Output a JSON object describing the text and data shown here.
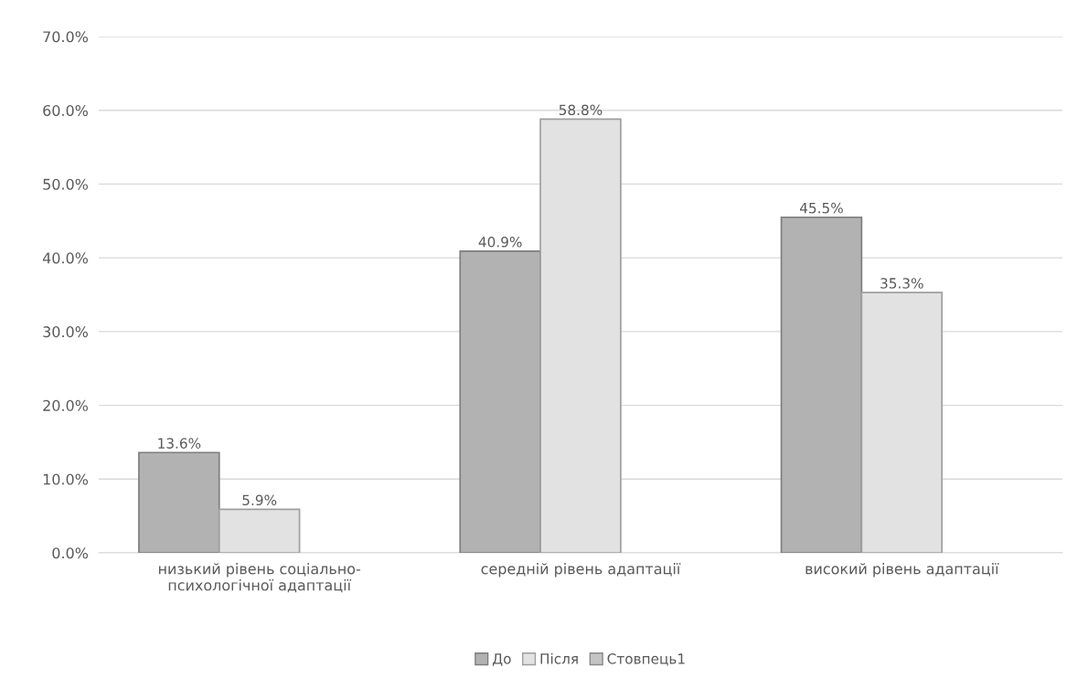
{
  "chart_data": {
    "type": "bar",
    "categories": [
      "низький рівень соціально-\nпсихологічної адаптації",
      "середній рівень адаптації",
      "високий рівень адаптації"
    ],
    "series": [
      {
        "name": "До",
        "color": "#b2b2b2",
        "values": [
          13.6,
          40.9,
          45.5
        ],
        "value_labels": [
          "13.6%",
          "40.9%",
          "45.5%"
        ]
      },
      {
        "name": "Після",
        "color": "#e2e2e2",
        "values": [
          5.9,
          58.8,
          35.3
        ],
        "value_labels": [
          "5.9%",
          "58.8%",
          "35.3%"
        ]
      },
      {
        "name": "Стовпець1",
        "color": "#c4c4c4",
        "values": [
          null,
          null,
          null
        ]
      }
    ],
    "ylim": [
      0,
      70
    ],
    "yticks": [
      {
        "value": 0,
        "label": "0.0%"
      },
      {
        "value": 10,
        "label": "10.0%"
      },
      {
        "value": 20,
        "label": "20.0%"
      },
      {
        "value": 30,
        "label": "30.0%"
      },
      {
        "value": 40,
        "label": "40.0%"
      },
      {
        "value": 50,
        "label": "50.0%"
      },
      {
        "value": 60,
        "label": "60.0%"
      },
      {
        "value": 70,
        "label": "70.0%"
      }
    ],
    "grid": "y",
    "legend": "bottom"
  }
}
